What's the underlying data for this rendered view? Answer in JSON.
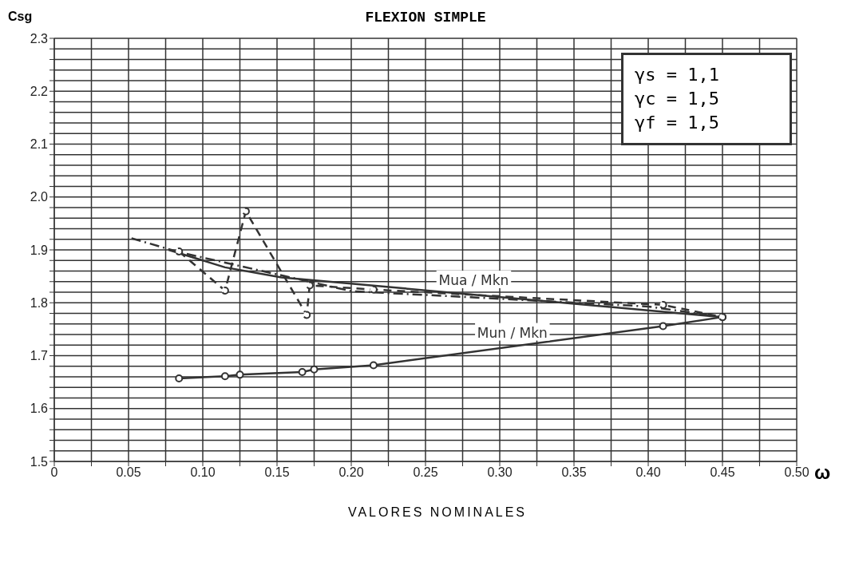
{
  "chart_data": {
    "type": "line",
    "title": "FLEXION SIMPLE",
    "xlabel": "VALORES NOMINALES",
    "ylabel": "Csg",
    "annotations": [
      "γs = 1,1",
      "γc = 1,5",
      "γf = 1,5",
      "ω"
    ],
    "xlim": [
      0,
      0.5
    ],
    "ylim": [
      1.5,
      2.3
    ],
    "xticks": [
      0,
      {
        "value": 0.025,
        "label": null
      },
      {
        "value": 0.05,
        "label": "0.05"
      },
      {
        "value": 0.075,
        "label": null
      },
      {
        "value": 0.1,
        "label": "0.10"
      },
      {
        "value": 0.125,
        "label": null
      },
      {
        "value": 0.15,
        "label": "0.15"
      },
      {
        "value": 0.175,
        "label": null
      },
      {
        "value": 0.2,
        "label": "0.20"
      },
      {
        "value": 0.225,
        "label": null
      },
      {
        "value": 0.25,
        "label": "0.25"
      },
      {
        "value": 0.275,
        "label": null
      },
      {
        "value": 0.3,
        "label": "0.30"
      },
      {
        "value": 0.325,
        "label": null
      },
      {
        "value": 0.35,
        "label": "0.35"
      },
      {
        "value": 0.375,
        "label": null
      },
      {
        "value": 0.4,
        "label": "0.40"
      },
      {
        "value": 0.425,
        "label": null
      },
      {
        "value": 0.45,
        "label": "0.45"
      },
      {
        "value": 0.475,
        "label": null
      },
      {
        "value": 0.5,
        "label": "0.50"
      }
    ],
    "yticks": [
      1.5,
      {
        "value": 1.52,
        "label": null
      },
      {
        "value": 1.54,
        "label": null
      },
      {
        "value": 1.56,
        "label": null
      },
      {
        "value": 1.58,
        "label": null
      },
      1.6,
      {
        "value": 1.62,
        "label": null
      },
      {
        "value": 1.64,
        "label": null
      },
      {
        "value": 1.66,
        "label": null
      },
      {
        "value": 1.68,
        "label": null
      },
      1.7,
      {
        "value": 1.72,
        "label": null
      },
      {
        "value": 1.74,
        "label": null
      },
      {
        "value": 1.76,
        "label": null
      },
      {
        "value": 1.78,
        "label": null
      },
      1.8,
      {
        "value": 1.82,
        "label": null
      },
      {
        "value": 1.84,
        "label": null
      },
      {
        "value": 1.86,
        "label": null
      },
      {
        "value": 1.88,
        "label": null
      },
      1.9,
      {
        "value": 1.92,
        "label": null
      },
      {
        "value": 1.94,
        "label": null
      },
      {
        "value": 1.96,
        "label": null
      },
      {
        "value": 1.98,
        "label": null
      },
      {
        "value": 2.0,
        "label": "2.0"
      },
      {
        "value": 2.02,
        "label": null
      },
      {
        "value": 2.04,
        "label": null
      },
      {
        "value": 2.06,
        "label": null
      },
      {
        "value": 2.08,
        "label": null
      },
      2.1,
      {
        "value": 2.12,
        "label": null
      },
      {
        "value": 2.14,
        "label": null
      },
      {
        "value": 2.16,
        "label": null
      },
      {
        "value": 2.18,
        "label": null
      },
      2.2,
      {
        "value": 2.22,
        "label": null
      },
      {
        "value": 2.24,
        "label": null
      },
      {
        "value": 2.26,
        "label": null
      },
      {
        "value": 2.28,
        "label": null
      },
      2.3
    ],
    "grid": true,
    "series": [
      {
        "name": "Mun / Mkn",
        "color": "#333333",
        "line_style": "solid",
        "marker": "circle",
        "x": [
          0.084,
          0.115,
          0.125,
          0.167,
          0.175,
          0.215,
          0.41,
          0.45
        ],
        "values": [
          1.657,
          1.661,
          1.664,
          1.669,
          1.674,
          1.682,
          1.756,
          1.773
        ]
      },
      {
        "name": "Mua / Mkn",
        "color": "#333333",
        "line_style": "solid",
        "marker": "none",
        "x": [
          0.077,
          0.115,
          0.153,
          0.45
        ],
        "values": [
          1.9,
          1.867,
          1.848,
          1.773
        ]
      },
      {
        "color": "#333333",
        "line_style": "dashed",
        "marker": "circle",
        "x": [
          0.084,
          0.115,
          0.129,
          0.17,
          0.172,
          0.215,
          0.41,
          0.45
        ],
        "values": [
          1.897,
          1.823,
          1.973,
          1.777,
          1.833,
          1.825,
          1.796,
          1.773
        ]
      },
      {
        "type": "line",
        "color": "#333333",
        "line_style": "dashdot",
        "marker": "none",
        "x": [
          0.052,
          0.085,
          0.2,
          0.4,
          0.45
        ],
        "values": [
          1.922,
          1.895,
          1.822,
          1.793,
          1.773
        ]
      }
    ]
  }
}
